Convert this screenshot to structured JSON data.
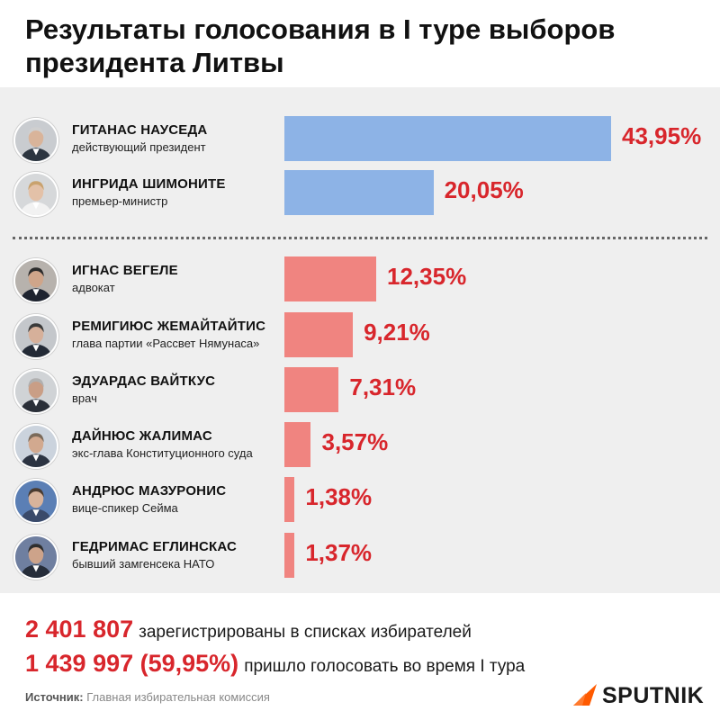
{
  "header": {
    "title": "Результаты голосования в I туре выборов президента Литвы"
  },
  "chart_data": {
    "type": "bar",
    "orientation": "horizontal",
    "title": "Результаты голосования в I туре выборов президента Литвы",
    "xlim": [
      0,
      43.95
    ],
    "candidates": [
      {
        "name": "ГИТАНАС НАУСЕДА",
        "role": "действующий президент",
        "value": 43.95,
        "label": "43,95%",
        "color": "#8db3e6"
      },
      {
        "name": "ИНГРИДА ШИМОНИТЕ",
        "role": "премьер-министр",
        "value": 20.05,
        "label": "20,05%",
        "color": "#8db3e6"
      },
      {
        "name": "ИГНАС ВЕГЕЛЕ",
        "role": "адвокат",
        "value": 12.35,
        "label": "12,35%",
        "color": "#f08480"
      },
      {
        "name": "РЕМИГИЮС ЖЕМАЙТАЙТИС",
        "role": "глава партии «Рассвет Нямунаса»",
        "value": 9.21,
        "label": "9,21%",
        "color": "#f08480"
      },
      {
        "name": "ЭДУАРДАС ВАЙТКУС",
        "role": "врач",
        "value": 7.31,
        "label": "7,31%",
        "color": "#f08480"
      },
      {
        "name": "ДАЙНЮС ЖАЛИМАС",
        "role": "экс-глава Конституционного суда",
        "value": 3.57,
        "label": "3,57%",
        "color": "#f08480"
      },
      {
        "name": "АНДРЮС МАЗУРОНИС",
        "role": "вице-спикер Сейма",
        "value": 1.38,
        "label": "1,38%",
        "color": "#f08480"
      },
      {
        "name": "ГЕДРИМАС ЕГЛИНСКАС",
        "role": "бывший замгенсека НАТО",
        "value": 1.37,
        "label": "1,37%",
        "color": "#f08480"
      }
    ]
  },
  "stats": {
    "registered_number": "2 401 807",
    "registered_text": "зарегистрированы в списках избирателей",
    "voted_number": "1 439 997 (59,95%)",
    "voted_text": "пришло голосовать во время I тура"
  },
  "footer": {
    "source_label": "Источник:",
    "source_text": "Главная избирательная комиссия",
    "brand": "SPUTNIK",
    "brand_color": "#ff5a00"
  },
  "colors": {
    "accent_red": "#d8262c",
    "bar_blue": "#8db3e6",
    "bar_red": "#f08480",
    "panel_bg": "#efefef"
  },
  "icons": {
    "avatar": "portrait-photo",
    "logo": "sputnik-logo-icon"
  }
}
